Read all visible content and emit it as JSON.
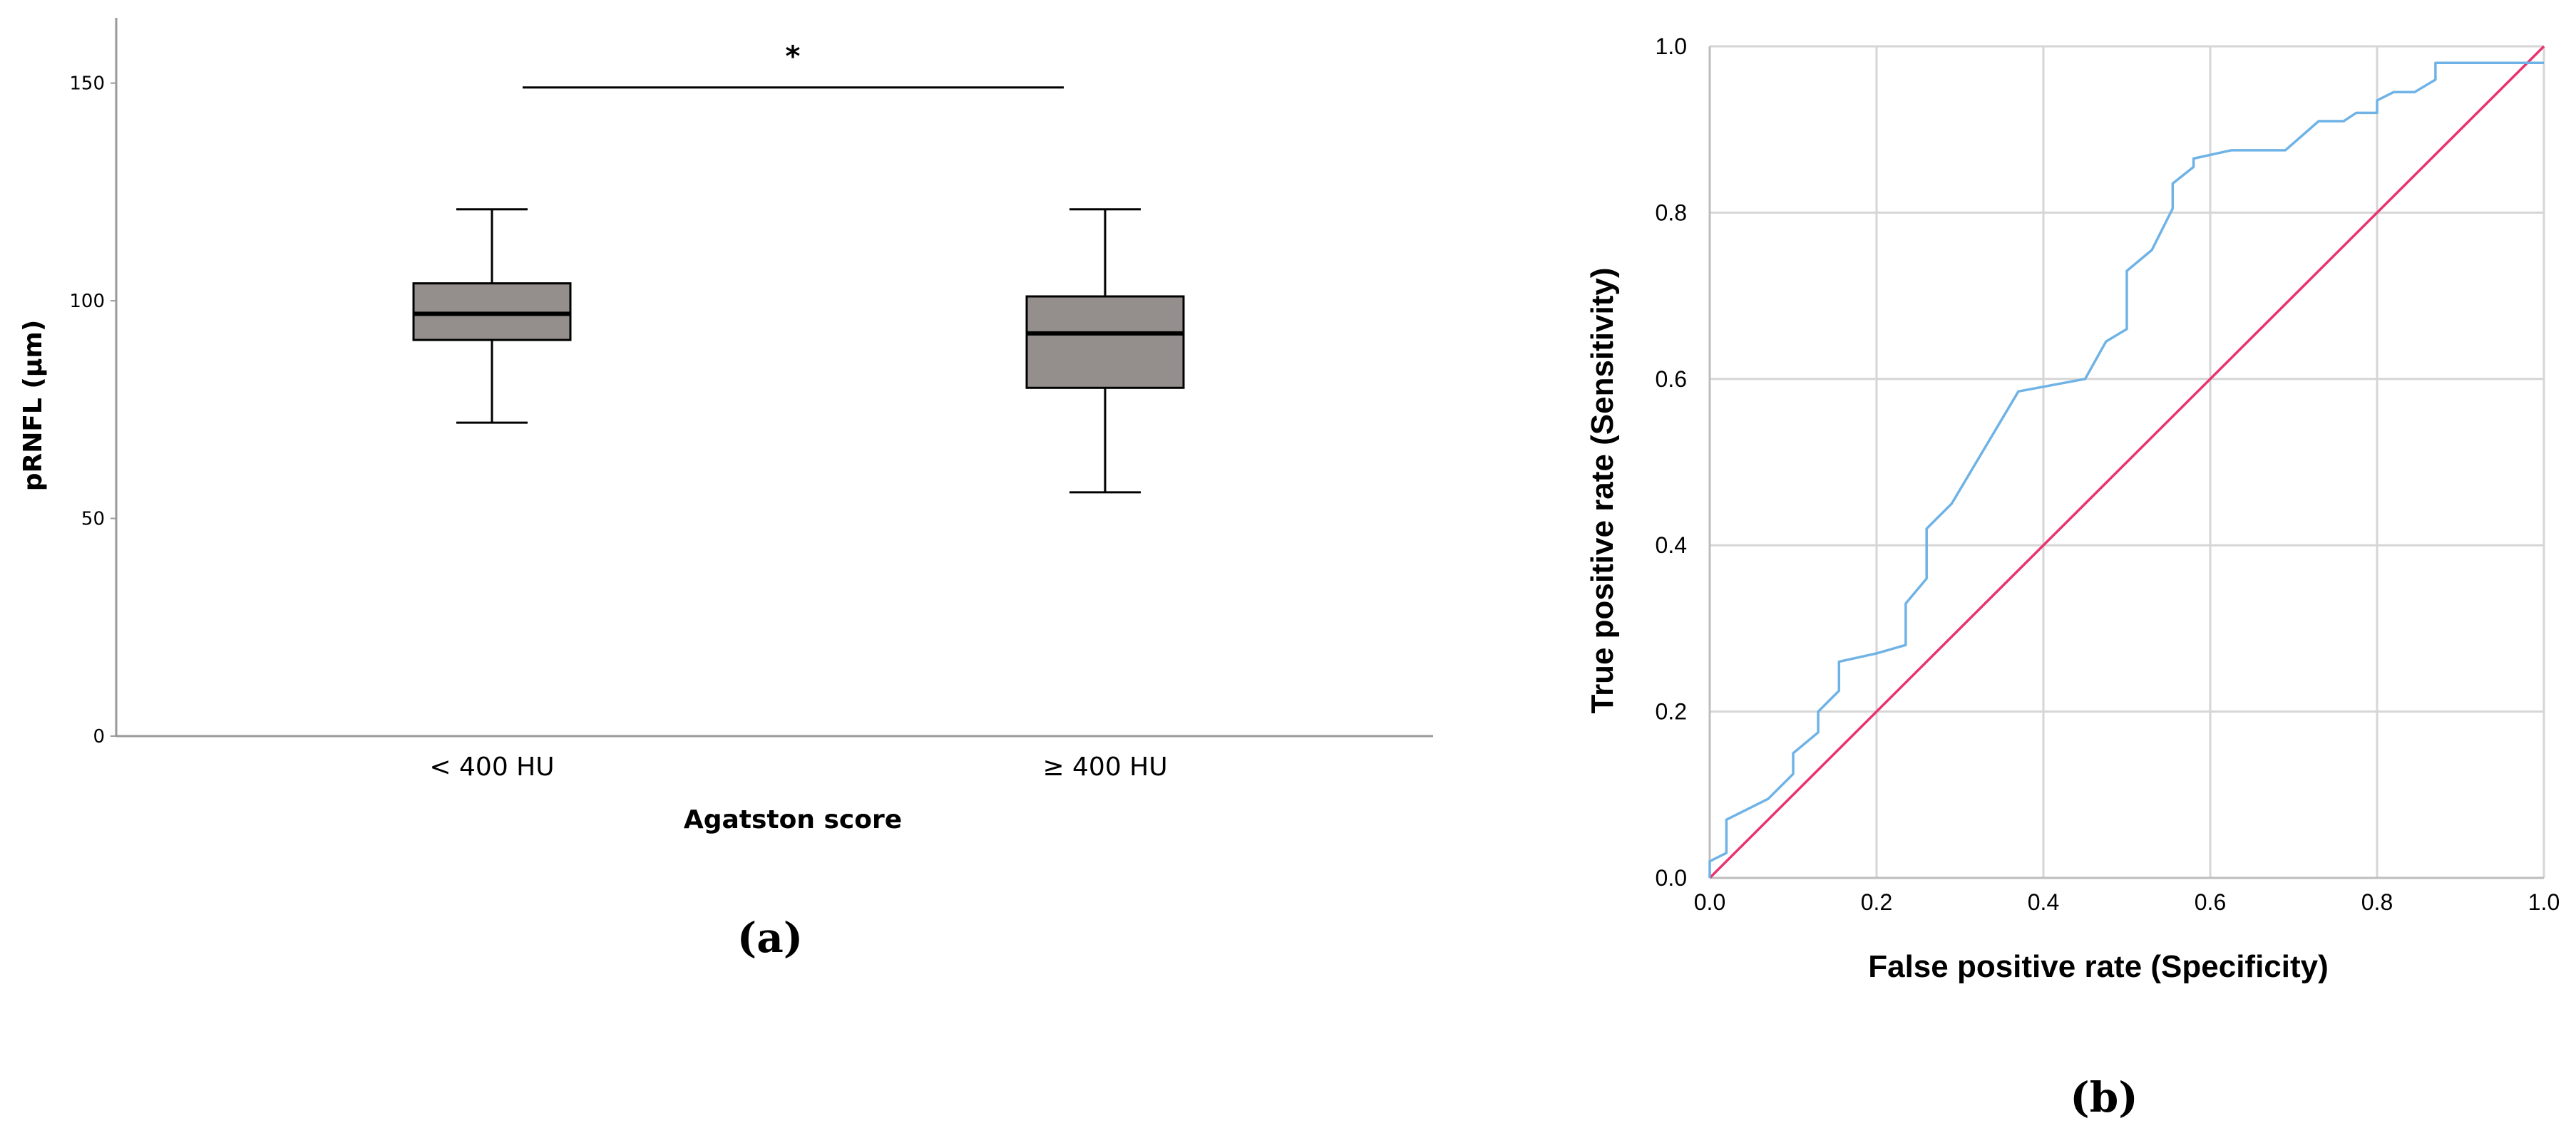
{
  "chart_data": [
    {
      "type": "box",
      "panel_label": "(a)",
      "xlabel": "Agatston score",
      "ylabel": "pRNFL (µm)",
      "ylim": [
        0,
        165
      ],
      "yticks": [
        0,
        50,
        100,
        150
      ],
      "grid": false,
      "categories": [
        "< 400 HU",
        "≥ 400 HU"
      ],
      "boxes": [
        {
          "category": "< 400 HU",
          "min": 72,
          "q1": 91,
          "median": 97,
          "q3": 104,
          "max": 121
        },
        {
          "category": "≥ 400 HU",
          "min": 56,
          "q1": 80,
          "median": 92.5,
          "q3": 101,
          "max": 121
        }
      ],
      "box_color": "#948f8d",
      "significance": {
        "label": "*",
        "y": 149,
        "between": [
          "< 400 HU",
          "≥ 400 HU"
        ]
      }
    },
    {
      "type": "line",
      "panel_label": "(b)",
      "xlabel": "False positive rate (Specificity)",
      "ylabel": "True positive rate (Sensitivity)",
      "xlim": [
        0,
        1
      ],
      "ylim": [
        0,
        1
      ],
      "xticks": [
        "0.0",
        "0.2",
        "0.4",
        "0.6",
        "0.8",
        "1.0"
      ],
      "yticks": [
        "0.0",
        "0.2",
        "0.4",
        "0.6",
        "0.8",
        "1.0"
      ],
      "grid": true,
      "series": [
        {
          "color": "#6fb3e6",
          "x": [
            0,
            0,
            0.02,
            0.02,
            0.07,
            0.1,
            0.1,
            0.13,
            0.13,
            0.155,
            0.155,
            0.2,
            0.235,
            0.235,
            0.26,
            0.26,
            0.29,
            0.37,
            0.45,
            0.475,
            0.5,
            0.5,
            0.53,
            0.555,
            0.555,
            0.58,
            0.58,
            0.625,
            0.68,
            0.69,
            0.73,
            0.76,
            0.775,
            0.8,
            0.8,
            0.82,
            0.845,
            0.87,
            0.87,
            1.0
          ],
          "y": [
            0,
            0.02,
            0.03,
            0.07,
            0.095,
            0.125,
            0.15,
            0.175,
            0.2,
            0.225,
            0.26,
            0.27,
            0.28,
            0.33,
            0.36,
            0.42,
            0.45,
            0.585,
            0.6,
            0.645,
            0.66,
            0.73,
            0.755,
            0.805,
            0.835,
            0.855,
            0.865,
            0.875,
            0.875,
            0.875,
            0.91,
            0.91,
            0.92,
            0.92,
            0.935,
            0.945,
            0.945,
            0.96,
            0.98,
            0.98
          ]
        },
        {
          "color": "#e8336f",
          "x": [
            0,
            1
          ],
          "y": [
            0,
            1
          ]
        }
      ]
    }
  ]
}
